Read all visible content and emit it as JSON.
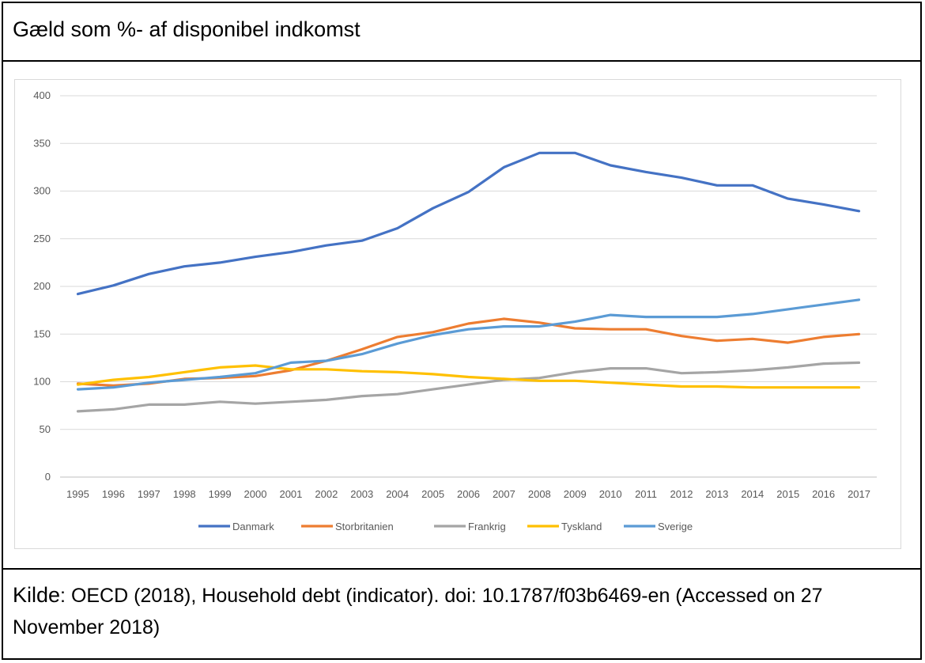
{
  "header": {
    "title": "Gæld som %- af disponibel indkomst"
  },
  "footer": {
    "source_label": "Kilde",
    "source_text": ": OECD (2018), Household debt (indicator). doi: 10.1787/f03b6469-en (Accessed on 27 November 2018)"
  },
  "chart_data": {
    "type": "line",
    "title": "",
    "xlabel": "",
    "ylabel": "",
    "ylim": [
      0,
      400
    ],
    "yticks": [
      "0",
      "50",
      "100",
      "150",
      "200",
      "250",
      "300",
      "350",
      "400"
    ],
    "grid": true,
    "legend_position": "bottom",
    "categories": [
      "1995",
      "1996",
      "1997",
      "1998",
      "1999",
      "2000",
      "2001",
      "2002",
      "2003",
      "2004",
      "2005",
      "2006",
      "2007",
      "2008",
      "2009",
      "2010",
      "2011",
      "2012",
      "2013",
      "2014",
      "2015",
      "2016",
      "2017"
    ],
    "series": [
      {
        "name": "Danmark",
        "color": "#4472C4",
        "values": [
          192,
          201,
          213,
          221,
          225,
          231,
          236,
          243,
          248,
          261,
          282,
          299,
          325,
          340,
          340,
          327,
          320,
          314,
          306,
          306,
          292,
          286,
          279
        ]
      },
      {
        "name": "Storbritanien",
        "color": "#ED7D31",
        "values": [
          98,
          96,
          98,
          103,
          104,
          106,
          112,
          122,
          134,
          147,
          152,
          161,
          166,
          162,
          156,
          155,
          155,
          148,
          143,
          145,
          141,
          147,
          150
        ]
      },
      {
        "name": "Frankrig",
        "color": "#A5A5A5",
        "values": [
          69,
          71,
          76,
          76,
          79,
          77,
          79,
          81,
          85,
          87,
          92,
          97,
          102,
          104,
          110,
          114,
          114,
          109,
          110,
          112,
          115,
          119,
          120
        ]
      },
      {
        "name": "Tyskland",
        "color": "#FFC000",
        "values": [
          97,
          102,
          105,
          110,
          115,
          117,
          113,
          113,
          111,
          110,
          108,
          105,
          103,
          101,
          101,
          99,
          97,
          95,
          95,
          94,
          94,
          94,
          94
        ]
      },
      {
        "name": "Sverige",
        "color": "#5B9BD5",
        "values": [
          92,
          94,
          99,
          102,
          105,
          109,
          120,
          122,
          129,
          140,
          149,
          155,
          158,
          158,
          163,
          170,
          168,
          168,
          168,
          171,
          176,
          181,
          186
        ]
      }
    ]
  }
}
